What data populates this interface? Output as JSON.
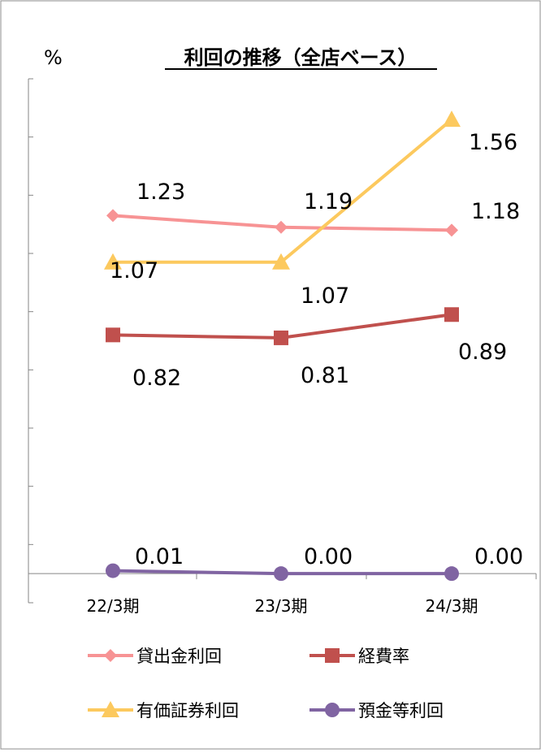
{
  "chart_data": {
    "type": "line",
    "title": "利回の推移（全店ベース）",
    "y_unit": "%",
    "categories": [
      "22/3期",
      "23/3期",
      "24/3期"
    ],
    "ylim": [
      -0.1,
      1.7
    ],
    "y_tick_step": 0.2,
    "grid": false,
    "legend_position": "bottom",
    "series": [
      {
        "name": "貸出金利回",
        "values": [
          1.23,
          1.19,
          1.18
        ],
        "labels": [
          "1.23",
          "1.19",
          "1.18"
        ],
        "color": "#f79394",
        "marker": "diamond"
      },
      {
        "name": "経費率",
        "values": [
          0.82,
          0.81,
          0.89
        ],
        "labels": [
          "0.82",
          "0.81",
          "0.89"
        ],
        "color": "#c0504d",
        "marker": "square"
      },
      {
        "name": "有価証券利回",
        "values": [
          1.07,
          1.07,
          1.56
        ],
        "labels": [
          "1.07",
          "1.07",
          "1.56"
        ],
        "color": "#fcc95e",
        "marker": "triangle"
      },
      {
        "name": "預金等利回",
        "values": [
          0.01,
          0.0,
          0.0
        ],
        "labels": [
          "0.01",
          "0.00",
          "0.00"
        ],
        "color": "#8064a2",
        "marker": "circle"
      }
    ]
  }
}
